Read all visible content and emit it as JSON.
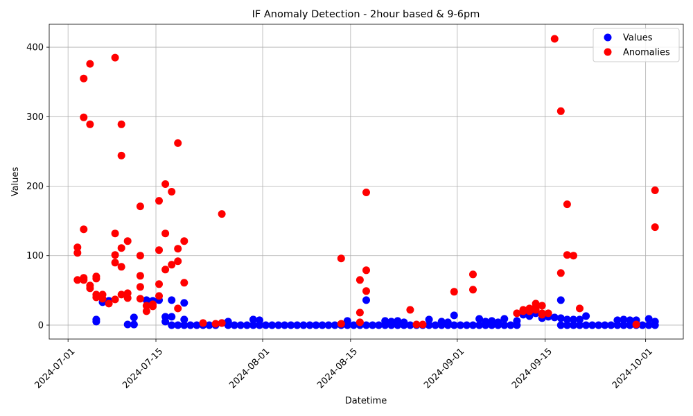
{
  "chart_data": {
    "type": "scatter",
    "title": "IF Anomaly Detection - 2hour based & 9-6pm",
    "xlabel": "Datetime",
    "ylabel": "Values",
    "x_type": "date",
    "xlim": [
      "2024-06-28",
      "2024-10-07"
    ],
    "ylim": [
      -20,
      433
    ],
    "x_ticks": [
      "2024-07-01",
      "2024-07-15",
      "2024-08-01",
      "2024-08-15",
      "2024-09-01",
      "2024-09-15",
      "2024-10-01"
    ],
    "y_ticks": [
      0,
      100,
      200,
      300,
      400
    ],
    "grid": true,
    "legend_position": "top-right",
    "colors": {
      "values": "#0000ff",
      "anomalies": "#ff0000"
    },
    "series": [
      {
        "name": "Values",
        "points": [
          [
            "2024-07-05",
            8
          ],
          [
            "2024-07-05",
            5
          ],
          [
            "2024-07-06",
            33
          ],
          [
            "2024-07-07",
            35
          ],
          [
            "2024-07-10",
            1
          ],
          [
            "2024-07-11",
            1
          ],
          [
            "2024-07-11",
            11
          ],
          [
            "2024-07-11",
            1
          ],
          [
            "2024-07-13",
            36
          ],
          [
            "2024-07-14",
            35
          ],
          [
            "2024-07-15",
            36
          ],
          [
            "2024-07-16",
            5
          ],
          [
            "2024-07-16",
            12
          ],
          [
            "2024-07-17",
            0
          ],
          [
            "2024-07-17",
            36
          ],
          [
            "2024-07-17",
            12
          ],
          [
            "2024-07-18",
            0
          ],
          [
            "2024-07-19",
            0
          ],
          [
            "2024-07-19",
            8
          ],
          [
            "2024-07-19",
            32
          ],
          [
            "2024-07-20",
            0
          ],
          [
            "2024-07-21",
            0
          ],
          [
            "2024-07-22",
            0
          ],
          [
            "2024-07-23",
            0
          ],
          [
            "2024-07-24",
            0
          ],
          [
            "2024-07-25",
            3
          ],
          [
            "2024-07-26",
            0
          ],
          [
            "2024-07-26",
            5
          ],
          [
            "2024-07-27",
            0
          ],
          [
            "2024-07-28",
            0
          ],
          [
            "2024-07-29",
            0
          ],
          [
            "2024-07-30",
            0
          ],
          [
            "2024-07-30",
            8
          ],
          [
            "2024-07-31",
            0
          ],
          [
            "2024-07-31",
            7
          ],
          [
            "2024-08-01",
            0
          ],
          [
            "2024-08-02",
            0
          ],
          [
            "2024-08-03",
            0
          ],
          [
            "2024-08-04",
            0
          ],
          [
            "2024-08-05",
            0
          ],
          [
            "2024-08-06",
            0
          ],
          [
            "2024-08-07",
            0
          ],
          [
            "2024-08-08",
            0
          ],
          [
            "2024-08-09",
            0
          ],
          [
            "2024-08-10",
            0
          ],
          [
            "2024-08-11",
            0
          ],
          [
            "2024-08-12",
            0
          ],
          [
            "2024-08-13",
            0
          ],
          [
            "2024-08-14",
            0
          ],
          [
            "2024-08-14",
            6
          ],
          [
            "2024-08-15",
            0
          ],
          [
            "2024-08-16",
            0
          ],
          [
            "2024-08-17",
            0
          ],
          [
            "2024-08-17",
            36
          ],
          [
            "2024-08-18",
            0
          ],
          [
            "2024-08-19",
            0
          ],
          [
            "2024-08-20",
            0
          ],
          [
            "2024-08-20",
            6
          ],
          [
            "2024-08-21",
            0
          ],
          [
            "2024-08-21",
            5
          ],
          [
            "2024-08-22",
            0
          ],
          [
            "2024-08-22",
            6
          ],
          [
            "2024-08-23",
            0
          ],
          [
            "2024-08-23",
            4
          ],
          [
            "2024-08-24",
            0
          ],
          [
            "2024-08-25",
            0
          ],
          [
            "2024-08-26",
            0
          ],
          [
            "2024-08-27",
            0
          ],
          [
            "2024-08-27",
            8
          ],
          [
            "2024-08-28",
            0
          ],
          [
            "2024-08-29",
            0
          ],
          [
            "2024-08-29",
            5
          ],
          [
            "2024-08-30",
            0
          ],
          [
            "2024-08-30",
            4
          ],
          [
            "2024-08-31",
            0
          ],
          [
            "2024-08-31",
            14
          ],
          [
            "2024-09-01",
            0
          ],
          [
            "2024-09-02",
            0
          ],
          [
            "2024-09-03",
            0
          ],
          [
            "2024-09-04",
            0
          ],
          [
            "2024-09-04",
            9
          ],
          [
            "2024-09-05",
            0
          ],
          [
            "2024-09-05",
            5
          ],
          [
            "2024-09-06",
            0
          ],
          [
            "2024-09-06",
            6
          ],
          [
            "2024-09-07",
            0
          ],
          [
            "2024-09-07",
            4
          ],
          [
            "2024-09-08",
            0
          ],
          [
            "2024-09-08",
            9
          ],
          [
            "2024-09-09",
            0
          ],
          [
            "2024-09-10",
            0
          ],
          [
            "2024-09-10",
            6
          ],
          [
            "2024-09-11",
            15
          ],
          [
            "2024-09-12",
            13
          ],
          [
            "2024-09-13",
            17
          ],
          [
            "2024-09-14",
            10
          ],
          [
            "2024-09-15",
            12
          ],
          [
            "2024-09-16",
            11
          ],
          [
            "2024-09-17",
            0
          ],
          [
            "2024-09-17",
            10
          ],
          [
            "2024-09-17",
            36
          ],
          [
            "2024-09-18",
            0
          ],
          [
            "2024-09-18",
            8
          ],
          [
            "2024-09-19",
            0
          ],
          [
            "2024-09-19",
            8
          ],
          [
            "2024-09-20",
            0
          ],
          [
            "2024-09-20",
            8
          ],
          [
            "2024-09-21",
            0
          ],
          [
            "2024-09-21",
            13
          ],
          [
            "2024-09-22",
            0
          ],
          [
            "2024-09-23",
            0
          ],
          [
            "2024-09-24",
            0
          ],
          [
            "2024-09-25",
            0
          ],
          [
            "2024-09-26",
            0
          ],
          [
            "2024-09-26",
            7
          ],
          [
            "2024-09-27",
            0
          ],
          [
            "2024-09-27",
            8
          ],
          [
            "2024-09-28",
            0
          ],
          [
            "2024-09-28",
            7
          ],
          [
            "2024-09-29",
            0
          ],
          [
            "2024-09-29",
            7
          ],
          [
            "2024-09-30",
            0
          ],
          [
            "2024-10-01",
            0
          ],
          [
            "2024-10-01",
            9
          ],
          [
            "2024-10-02",
            0
          ],
          [
            "2024-10-02",
            5
          ]
        ]
      },
      {
        "name": "Anomalies",
        "points": [
          [
            "2024-07-02",
            65
          ],
          [
            "2024-07-02",
            104
          ],
          [
            "2024-07-02",
            112
          ],
          [
            "2024-07-03",
            355
          ],
          [
            "2024-07-03",
            299
          ],
          [
            "2024-07-03",
            68
          ],
          [
            "2024-07-03",
            65
          ],
          [
            "2024-07-03",
            138
          ],
          [
            "2024-07-04",
            376
          ],
          [
            "2024-07-04",
            289
          ],
          [
            "2024-07-04",
            57
          ],
          [
            "2024-07-04",
            53
          ],
          [
            "2024-07-05",
            70
          ],
          [
            "2024-07-05",
            67
          ],
          [
            "2024-07-05",
            44
          ],
          [
            "2024-07-05",
            40
          ],
          [
            "2024-07-06",
            44
          ],
          [
            "2024-07-06",
            38
          ],
          [
            "2024-07-07",
            31
          ],
          [
            "2024-07-08",
            37
          ],
          [
            "2024-07-08",
            101
          ],
          [
            "2024-07-08",
            90
          ],
          [
            "2024-07-08",
            385
          ],
          [
            "2024-07-08",
            132
          ],
          [
            "2024-07-09",
            244
          ],
          [
            "2024-07-09",
            289
          ],
          [
            "2024-07-09",
            111
          ],
          [
            "2024-07-09",
            84
          ],
          [
            "2024-07-09",
            44
          ],
          [
            "2024-07-10",
            46
          ],
          [
            "2024-07-10",
            121
          ],
          [
            "2024-07-10",
            39
          ],
          [
            "2024-07-12",
            38
          ],
          [
            "2024-07-12",
            55
          ],
          [
            "2024-07-12",
            71
          ],
          [
            "2024-07-12",
            171
          ],
          [
            "2024-07-12",
            100
          ],
          [
            "2024-07-13",
            20
          ],
          [
            "2024-07-13",
            28
          ],
          [
            "2024-07-14",
            30
          ],
          [
            "2024-07-14",
            27
          ],
          [
            "2024-07-15",
            42
          ],
          [
            "2024-07-15",
            59
          ],
          [
            "2024-07-15",
            108
          ],
          [
            "2024-07-15",
            179
          ],
          [
            "2024-07-16",
            132
          ],
          [
            "2024-07-16",
            80
          ],
          [
            "2024-07-16",
            203
          ],
          [
            "2024-07-17",
            192
          ],
          [
            "2024-07-17",
            87
          ],
          [
            "2024-07-18",
            92
          ],
          [
            "2024-07-18",
            24
          ],
          [
            "2024-07-18",
            110
          ],
          [
            "2024-07-18",
            262
          ],
          [
            "2024-07-19",
            61
          ],
          [
            "2024-07-19",
            121
          ],
          [
            "2024-07-22",
            3
          ],
          [
            "2024-07-24",
            2
          ],
          [
            "2024-07-25",
            3
          ],
          [
            "2024-07-25",
            160
          ],
          [
            "2024-08-13",
            2
          ],
          [
            "2024-08-13",
            96
          ],
          [
            "2024-08-16",
            4
          ],
          [
            "2024-08-16",
            18
          ],
          [
            "2024-08-16",
            65
          ],
          [
            "2024-08-17",
            49
          ],
          [
            "2024-08-17",
            79
          ],
          [
            "2024-08-17",
            191
          ],
          [
            "2024-08-24",
            22
          ],
          [
            "2024-08-25",
            1
          ],
          [
            "2024-08-26",
            1
          ],
          [
            "2024-08-31",
            48
          ],
          [
            "2024-09-03",
            51
          ],
          [
            "2024-09-03",
            73
          ],
          [
            "2024-09-10",
            17
          ],
          [
            "2024-09-11",
            20
          ],
          [
            "2024-09-11",
            22
          ],
          [
            "2024-09-12",
            23
          ],
          [
            "2024-09-12",
            20
          ],
          [
            "2024-09-12",
            24
          ],
          [
            "2024-09-13",
            26
          ],
          [
            "2024-09-13",
            31
          ],
          [
            "2024-09-13",
            22
          ],
          [
            "2024-09-14",
            28
          ],
          [
            "2024-09-14",
            17
          ],
          [
            "2024-09-14",
            15
          ],
          [
            "2024-09-15",
            17
          ],
          [
            "2024-09-16",
            412
          ],
          [
            "2024-09-17",
            308
          ],
          [
            "2024-09-17",
            75
          ],
          [
            "2024-09-18",
            174
          ],
          [
            "2024-09-18",
            101
          ],
          [
            "2024-09-19",
            100
          ],
          [
            "2024-09-20",
            24
          ],
          [
            "2024-09-29",
            1
          ],
          [
            "2024-10-02",
            141
          ],
          [
            "2024-10-02",
            194
          ]
        ]
      }
    ]
  }
}
